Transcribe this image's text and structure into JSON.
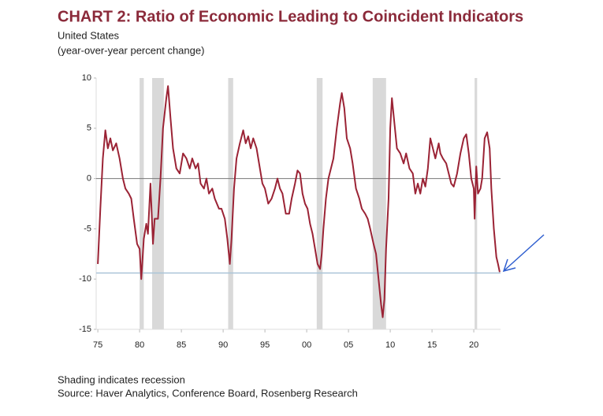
{
  "chart_data": {
    "type": "line",
    "title": "CHART 2: Ratio of Economic Leading to Coincident Indicators",
    "subtitle": "United States",
    "ylabel": "(year-over-year percent change)",
    "notes": [
      "Shading indicates recession",
      "Source: Haver Analytics, Conference Board, Rosenberg Research"
    ],
    "color": "#9b2335",
    "recession_color": "#d9d9d9",
    "recessions": [
      [
        1980.0,
        1980.5
      ],
      [
        1981.5,
        1982.9
      ],
      [
        1990.6,
        1991.2
      ],
      [
        2001.2,
        2001.9
      ],
      [
        2007.9,
        2009.5
      ],
      [
        2020.1,
        2020.4
      ]
    ],
    "ref_line": -9.4,
    "ref_color": "#a9c4d8",
    "zero_line": 0,
    "xlim": [
      1974.8,
      2023.2
    ],
    "ylim": [
      -15,
      10
    ],
    "yticks": [
      10,
      5,
      0,
      -5,
      -10,
      -15
    ],
    "xticks": [
      {
        "value": 1975,
        "label": "75"
      },
      {
        "value": 1980,
        "label": "80"
      },
      {
        "value": 1985,
        "label": "85"
      },
      {
        "value": 1990,
        "label": "90"
      },
      {
        "value": 1995,
        "label": "95"
      },
      {
        "value": 2000,
        "label": "00"
      },
      {
        "value": 2005,
        "label": "05"
      },
      {
        "value": 2010,
        "label": "10"
      },
      {
        "value": 2015,
        "label": "15"
      },
      {
        "value": 2020,
        "label": "20"
      }
    ],
    "x": [
      1975.0,
      1975.3,
      1975.6,
      1975.9,
      1976.2,
      1976.5,
      1976.8,
      1977.2,
      1977.6,
      1978.0,
      1978.3,
      1978.7,
      1979.0,
      1979.3,
      1979.7,
      1980.0,
      1980.2,
      1980.5,
      1980.8,
      1981.0,
      1981.3,
      1981.6,
      1981.8,
      1982.2,
      1982.5,
      1982.8,
      1983.2,
      1983.4,
      1983.7,
      1984.0,
      1984.4,
      1984.8,
      1985.2,
      1985.6,
      1986.0,
      1986.3,
      1986.7,
      1987.0,
      1987.3,
      1987.7,
      1988.0,
      1988.3,
      1988.7,
      1989.0,
      1989.5,
      1989.8,
      1990.2,
      1990.5,
      1990.8,
      1991.0,
      1991.3,
      1991.6,
      1992.0,
      1992.4,
      1992.7,
      1993.0,
      1993.3,
      1993.6,
      1994.0,
      1994.3,
      1994.7,
      1995.0,
      1995.4,
      1995.8,
      1996.2,
      1996.5,
      1996.8,
      1997.1,
      1997.5,
      1997.9,
      1998.2,
      1998.6,
      1998.9,
      1999.2,
      1999.5,
      1999.8,
      2000.1,
      2000.4,
      2000.7,
      2001.0,
      2001.3,
      2001.6,
      2001.8,
      2002.0,
      2002.3,
      2002.6,
      2002.9,
      2003.2,
      2003.6,
      2004.0,
      2004.2,
      2004.5,
      2004.8,
      2005.2,
      2005.5,
      2005.9,
      2006.3,
      2006.6,
      2007.0,
      2007.3,
      2007.6,
      2008.0,
      2008.3,
      2008.6,
      2008.9,
      2009.1,
      2009.3,
      2009.5,
      2009.8,
      2010.0,
      2010.2,
      2010.5,
      2010.8,
      2011.2,
      2011.6,
      2011.9,
      2012.3,
      2012.7,
      2013.0,
      2013.3,
      2013.6,
      2013.9,
      2014.2,
      2014.5,
      2014.8,
      2015.1,
      2015.4,
      2015.8,
      2016.0,
      2016.3,
      2016.7,
      2017.0,
      2017.3,
      2017.6,
      2018.0,
      2018.4,
      2018.8,
      2019.1,
      2019.4,
      2019.7,
      2020.0,
      2020.1,
      2020.3,
      2020.5,
      2020.8,
      2021.0,
      2021.3,
      2021.6,
      2021.9,
      2022.1,
      2022.4,
      2022.7,
      2022.9,
      2023.1
    ],
    "values": [
      -8.5,
      -3,
      2,
      4.8,
      3,
      4,
      2.8,
      3.5,
      2,
      0,
      -1,
      -1.5,
      -2,
      -4,
      -6.5,
      -7,
      -10,
      -6,
      -4.5,
      -5.5,
      -0.5,
      -6.5,
      -4,
      -4,
      0,
      5,
      8,
      9.2,
      6,
      3,
      1,
      0.5,
      2.5,
      2,
      1,
      2,
      1,
      1.5,
      -0.5,
      -1,
      0,
      -1.5,
      -1,
      -2,
      -3,
      -3,
      -4,
      -6,
      -8.5,
      -6,
      -1,
      2,
      3.5,
      4.8,
      3.5,
      4.2,
      3,
      4,
      3,
      1.5,
      -0.5,
      -1,
      -2.5,
      -2,
      -1,
      0,
      -1,
      -1.5,
      -3.5,
      -3.5,
      -2,
      -0.5,
      0.8,
      0.5,
      -1.5,
      -2.5,
      -3,
      -4.5,
      -5.5,
      -7,
      -8.5,
      -9,
      -7.5,
      -5,
      -2,
      0,
      1,
      2,
      5,
      7.5,
      8.5,
      7,
      4,
      3,
      1.5,
      -1,
      -2,
      -3,
      -3.5,
      -4,
      -5,
      -6.5,
      -7.5,
      -10,
      -12.5,
      -13.8,
      -12,
      -7,
      -2,
      5,
      8,
      5.5,
      3,
      2.5,
      1.5,
      2.5,
      1,
      0.5,
      -1.5,
      -0.5,
      -1.5,
      0,
      -0.8,
      1,
      4,
      3,
      2,
      3.5,
      2.5,
      2,
      1.5,
      0.5,
      -0.5,
      -0.8,
      0.5,
      2.5,
      4,
      4.4,
      2.5,
      0,
      -1,
      -4,
      1.2,
      -1.5,
      -1,
      0,
      4,
      4.6,
      3,
      -1,
      -5,
      -7.8,
      -8.5,
      -9.3
    ]
  }
}
